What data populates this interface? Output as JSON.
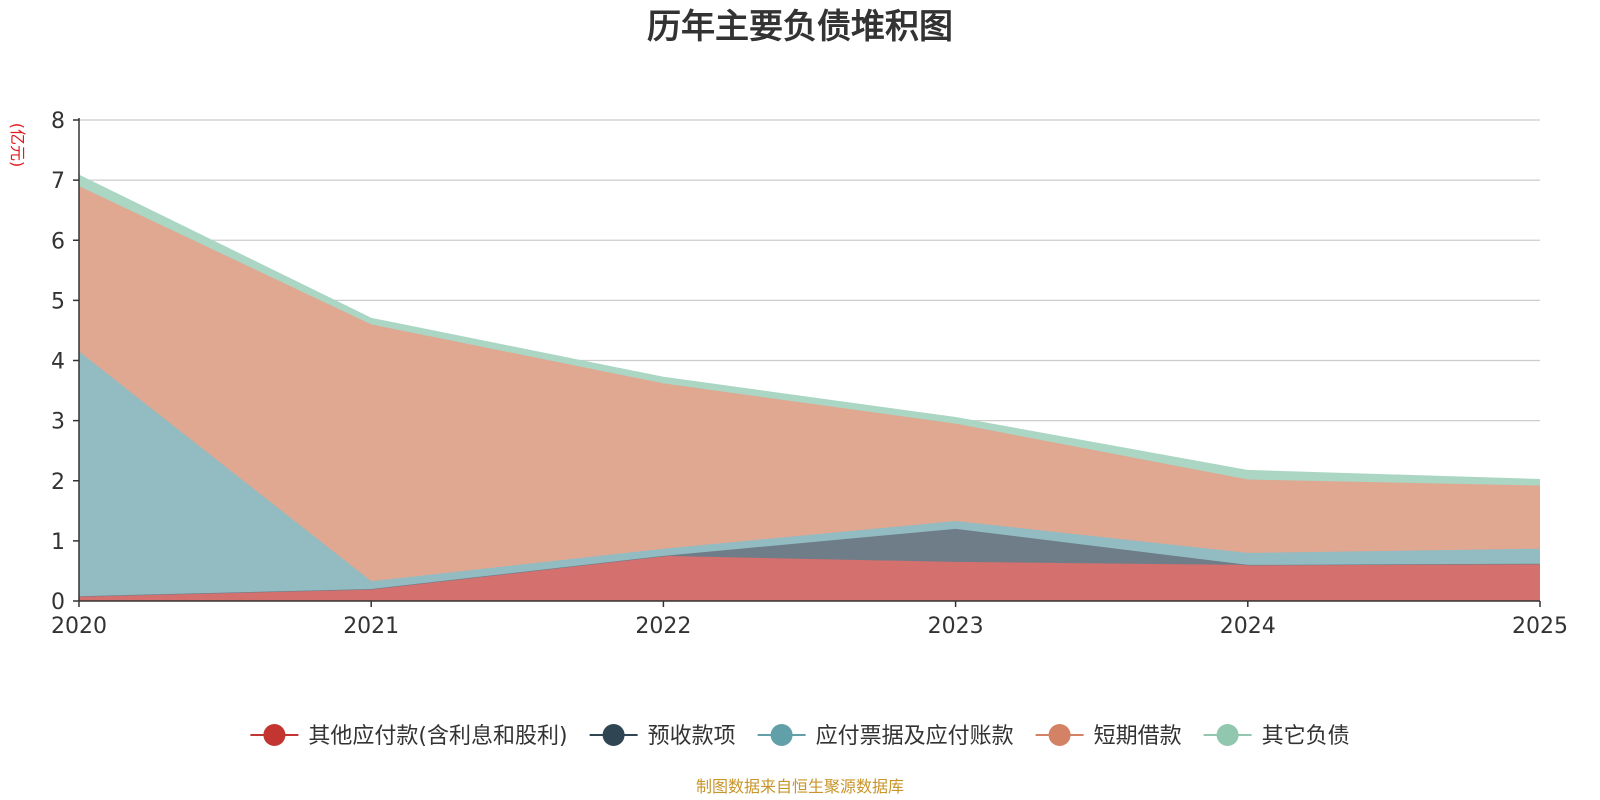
{
  "chart_data": {
    "type": "area",
    "stacked": true,
    "title": "历年主要负债堆积图",
    "unit_label": "(亿元)",
    "source_note": "制图数据来自恒生聚源数据库",
    "x": [
      "2020",
      "2021",
      "2022",
      "2023",
      "2024",
      "2025"
    ],
    "ylim": [
      0,
      8
    ],
    "yticks": [
      "0",
      "1",
      "2",
      "3",
      "4",
      "5",
      "6",
      "7",
      "8"
    ],
    "grid": true,
    "legend_position": "bottom",
    "series": [
      {
        "name": "其他应付款(含利息和股利)",
        "color": "#c23531",
        "fill": "#d4706e",
        "values": [
          0.08,
          0.2,
          0.75,
          0.65,
          0.6,
          0.62
        ]
      },
      {
        "name": "预收款项",
        "color": "#2f4554",
        "fill": "#6e7d88",
        "values": [
          0.0,
          0.0,
          0.0,
          0.55,
          0.0,
          0.0
        ]
      },
      {
        "name": "应付票据及应付账款",
        "color": "#61a0a8",
        "fill": "#93bcc2",
        "values": [
          4.07,
          0.13,
          0.12,
          0.13,
          0.2,
          0.25
        ]
      },
      {
        "name": "短期借款",
        "color": "#d48265",
        "fill": "#e0a791",
        "values": [
          2.75,
          4.27,
          2.75,
          1.62,
          1.22,
          1.05
        ]
      },
      {
        "name": "其它负债",
        "color": "#91c7ae",
        "fill": "#aad6c3",
        "values": [
          0.18,
          0.1,
          0.1,
          0.1,
          0.15,
          0.1
        ]
      }
    ]
  }
}
